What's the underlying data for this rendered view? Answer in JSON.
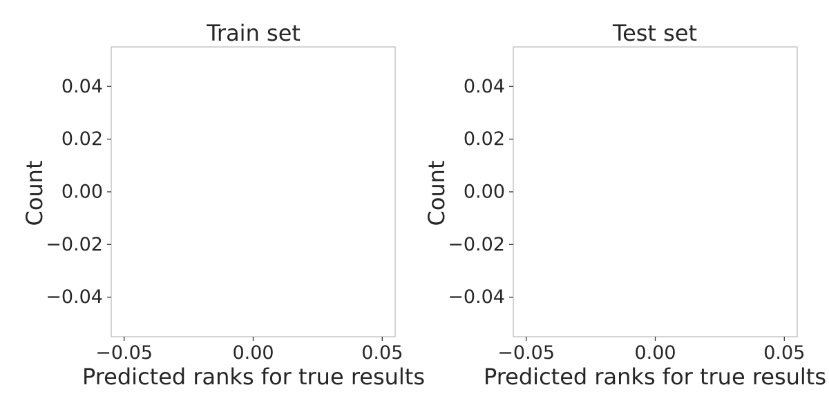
{
  "chart_data": [
    {
      "type": "bar",
      "title": "Train set",
      "xlabel": "Predicted ranks for true results",
      "ylabel": "Count",
      "xlim": [
        -0.055,
        0.055
      ],
      "ylim": [
        -0.055,
        0.055
      ],
      "xticks": [
        -0.05,
        0.0,
        0.05
      ],
      "xtick_labels": [
        "−0.05",
        "0.00",
        "0.05"
      ],
      "yticks": [
        0.04,
        0.02,
        0.0,
        -0.02,
        -0.04
      ],
      "ytick_labels": [
        "0.04",
        "0.02",
        "0.00",
        "−0.02",
        "−0.04"
      ],
      "grid": false,
      "series": [
        {
          "values": []
        }
      ]
    },
    {
      "type": "bar",
      "title": "Test set",
      "xlabel": "Predicted ranks for true results",
      "ylabel": "Count",
      "xlim": [
        -0.055,
        0.055
      ],
      "ylim": [
        -0.055,
        0.055
      ],
      "xticks": [
        -0.05,
        0.0,
        0.05
      ],
      "xtick_labels": [
        "−0.05",
        "0.00",
        "0.05"
      ],
      "yticks": [
        0.04,
        0.02,
        0.0,
        -0.02,
        -0.04
      ],
      "ytick_labels": [
        "0.04",
        "0.02",
        "0.00",
        "−0.02",
        "−0.04"
      ],
      "grid": false,
      "series": [
        {
          "values": []
        }
      ]
    }
  ]
}
